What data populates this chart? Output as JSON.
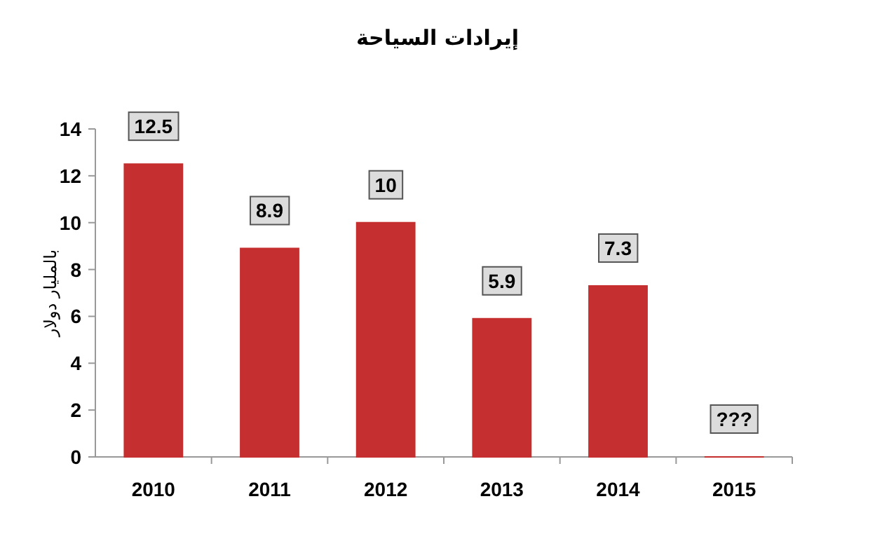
{
  "chart_data": {
    "type": "bar",
    "title": "إيرادات السياحة",
    "ylabel": "بالمليار دولار",
    "categories": [
      "2010",
      "2011",
      "2012",
      "2013",
      "2014",
      "2015"
    ],
    "values": [
      12.5,
      8.9,
      10,
      5.9,
      7.3,
      0
    ],
    "value_labels": [
      "12.5",
      "8.9",
      "10",
      "5.9",
      "7.3",
      "???"
    ],
    "color": "#c62f2f",
    "ylim": [
      0,
      14
    ],
    "yticks": [
      0,
      2,
      4,
      6,
      8,
      10,
      12,
      14
    ],
    "grid": false
  }
}
